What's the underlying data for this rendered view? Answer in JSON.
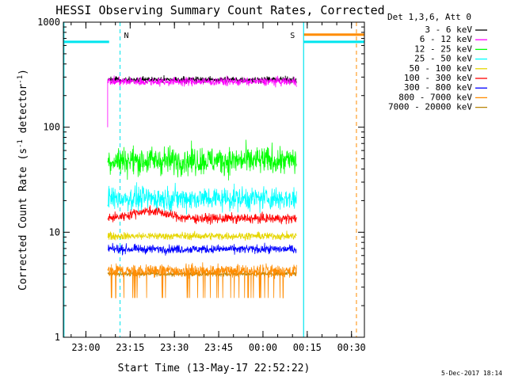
{
  "chart_data": {
    "type": "line",
    "title": "HESSI Observing Summary Count Rates, Corrected",
    "xlabel": "Start Time (13-May-17 22:52:22)",
    "ylabel_parts": [
      "Corrected Count Rate (s",
      "-1",
      " detector",
      "-1",
      ")"
    ],
    "yscale": "log",
    "ylim": [
      1,
      1000
    ],
    "xlim_minutes": [
      0,
      102
    ],
    "x_ticks": [
      {
        "label": "23:00",
        "min": 7.63
      },
      {
        "label": "23:15",
        "min": 22.63
      },
      {
        "label": "23:30",
        "min": 37.63
      },
      {
        "label": "23:45",
        "min": 52.63
      },
      {
        "label": "00:00",
        "min": 67.63
      },
      {
        "label": "00:15",
        "min": 82.63
      },
      {
        "label": "00:30",
        "min": 97.63
      }
    ],
    "y_ticks": [
      {
        "label": "1",
        "value": 1
      },
      {
        "label": "10",
        "value": 10
      },
      {
        "label": "100",
        "value": 100
      },
      {
        "label": "1000",
        "value": 1000
      }
    ],
    "legend_title": "Det 1,3,6, Att 0",
    "legend_position": "right",
    "series": [
      {
        "name": "3 - 6 keV",
        "color": "#000000",
        "level": 283,
        "spread": 0.03,
        "sample_every_min": 0.1
      },
      {
        "name": "6 - 12 keV",
        "color": "#ff00ff",
        "level": 272,
        "spread": 0.04,
        "sample_every_min": 0.1
      },
      {
        "name": "12 - 25 keV",
        "color": "#00ff00",
        "level": 48,
        "spread": 0.13,
        "sample_every_min": 0.1
      },
      {
        "name": "25 - 50 keV",
        "color": "#00ffff",
        "level": 21,
        "spread": 0.11,
        "sample_every_min": 0.1
      },
      {
        "name": "50 - 100 keV",
        "color": "#e6d600",
        "level": 9.2,
        "spread": 0.035,
        "sample_every_min": 0.1
      },
      {
        "name": "100 - 300 keV",
        "color": "#ff0000",
        "level": 13.5,
        "spread": 0.045,
        "sample_every_min": 0.1
      },
      {
        "name": "300 - 800 keV",
        "color": "#0000ff",
        "level": 6.9,
        "spread": 0.04,
        "sample_every_min": 0.1
      },
      {
        "name": "800 - 7000 keV",
        "color": "#ff8c00",
        "level": 4.3,
        "spread": 0.06,
        "sample_every_min": 0.1
      },
      {
        "name": "7000 - 20000 keV",
        "color": "#b8860b",
        "level": 4.0,
        "spread": 0.02,
        "sample_every_min": 0.1
      }
    ],
    "data_window_min": [
      15.0,
      79.0
    ],
    "night_intervals_min": [
      [
        0,
        15.5
      ],
      [
        81.4,
        102
      ]
    ],
    "night_level": 650,
    "saa_intervals_min": [
      [
        81.4,
        102
      ]
    ],
    "saa_level": 760,
    "markers": [
      {
        "label": "N",
        "min": 19.2,
        "color": "#00e5ee"
      },
      {
        "label": "S",
        "min": 79.8,
        "color": "#ff8c00"
      }
    ],
    "dashed_lines_min": [
      {
        "min": 19.2,
        "color": "#00e5ee"
      },
      {
        "min": 99.3,
        "color": "#ff8c00"
      }
    ],
    "solid_lines_min": [
      {
        "min": 0.2,
        "color": "#00e5ee"
      },
      {
        "min": 81.4,
        "color": "#00e5ee"
      }
    ]
  },
  "footer_timestamp": "5-Dec-2017 18:14"
}
